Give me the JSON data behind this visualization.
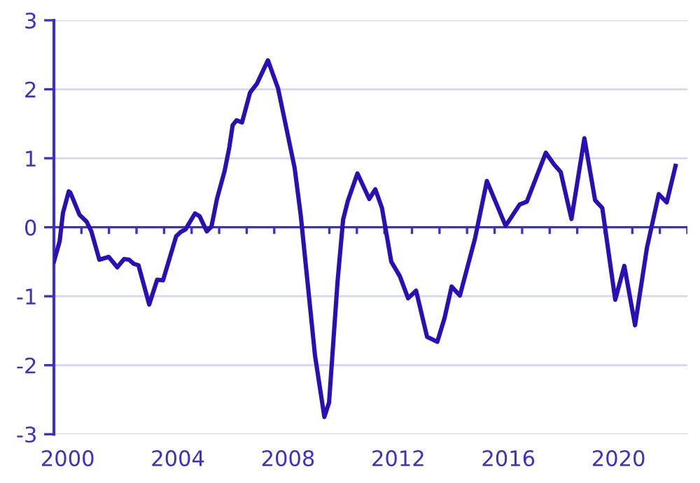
{
  "chart_data": {
    "type": "line",
    "x": [
      2000.0,
      2000.21,
      2000.33,
      2000.54,
      2000.6,
      2000.93,
      2001.19,
      2001.36,
      2001.65,
      2001.99,
      2002.3,
      2002.55,
      2002.73,
      2002.9,
      2003.07,
      2003.46,
      2003.75,
      2003.96,
      2004.44,
      2004.6,
      2004.78,
      2005.12,
      2005.29,
      2005.55,
      2005.72,
      2005.92,
      2006.2,
      2006.37,
      2006.49,
      2006.63,
      2006.83,
      2007.12,
      2007.37,
      2007.77,
      2008.14,
      2008.37,
      2008.74,
      2008.96,
      2009.22,
      2009.48,
      2009.82,
      2009.99,
      2010.3,
      2010.5,
      2010.67,
      2011.02,
      2011.45,
      2011.67,
      2011.91,
      2012.25,
      2012.56,
      2012.86,
      2013.15,
      2013.55,
      2013.92,
      2014.18,
      2014.44,
      2014.74,
      2015.29,
      2015.72,
      2016.4,
      2016.91,
      2017.17,
      2017.86,
      2018.16,
      2018.4,
      2018.79,
      2019.26,
      2019.65,
      2019.91,
      2020.38,
      2020.71,
      2021.1,
      2021.53,
      2021.96,
      2022.25,
      2022.57
    ],
    "series": [
      {
        "color": "#2a10b4",
        "values": [
          -0.5,
          -0.2,
          0.21,
          0.52,
          0.5,
          0.18,
          0.08,
          -0.06,
          -0.47,
          -0.43,
          -0.58,
          -0.46,
          -0.47,
          -0.53,
          -0.55,
          -1.12,
          -0.76,
          -0.77,
          -0.13,
          -0.07,
          -0.03,
          0.2,
          0.16,
          -0.06,
          0.01,
          0.41,
          0.82,
          1.16,
          1.48,
          1.55,
          1.52,
          1.95,
          2.08,
          2.42,
          2.01,
          1.57,
          0.86,
          0.18,
          -0.84,
          -1.86,
          -2.75,
          -2.54,
          -0.78,
          0.11,
          0.38,
          0.78,
          0.41,
          0.55,
          0.28,
          -0.5,
          -0.71,
          -1.03,
          -0.92,
          -1.59,
          -1.66,
          -1.32,
          -0.86,
          -0.99,
          -0.16,
          0.67,
          0.02,
          0.33,
          0.37,
          1.08,
          0.91,
          0.8,
          0.12,
          1.29,
          0.39,
          0.28,
          -1.05,
          -0.56,
          -1.42,
          -0.3,
          0.48,
          0.36,
          0.89
        ]
      }
    ],
    "xlim": [
      2000,
      2023
    ],
    "xticks": [
      {
        "value": 2000,
        "label": null
      },
      {
        "value": 2000.5,
        "label": "2000"
      },
      {
        "value": 2001,
        "label": null
      },
      {
        "value": 2002,
        "label": null
      },
      {
        "value": 2003,
        "label": null
      },
      {
        "value": 2004,
        "label": null
      },
      {
        "value": 2004.5,
        "label": "2004"
      },
      {
        "value": 2005,
        "label": null
      },
      {
        "value": 2006,
        "label": null
      },
      {
        "value": 2007,
        "label": null
      },
      {
        "value": 2008,
        "label": null
      },
      {
        "value": 2008.5,
        "label": "2008"
      },
      {
        "value": 2009,
        "label": null
      },
      {
        "value": 2010,
        "label": null
      },
      {
        "value": 2011,
        "label": null
      },
      {
        "value": 2012,
        "label": null
      },
      {
        "value": 2012.5,
        "label": "2012"
      },
      {
        "value": 2013,
        "label": null
      },
      {
        "value": 2014,
        "label": null
      },
      {
        "value": 2015,
        "label": null
      },
      {
        "value": 2016,
        "label": null
      },
      {
        "value": 2016.5,
        "label": "2016"
      },
      {
        "value": 2017,
        "label": null
      },
      {
        "value": 2018,
        "label": null
      },
      {
        "value": 2019,
        "label": null
      },
      {
        "value": 2020,
        "label": null
      },
      {
        "value": 2020.5,
        "label": "2020"
      },
      {
        "value": 2021,
        "label": null
      },
      {
        "value": 2022,
        "label": null
      },
      {
        "value": 2023,
        "label": null
      }
    ],
    "ylim": [
      -3,
      3
    ],
    "yticks": [
      -3,
      -2,
      -1,
      0,
      1,
      2,
      3
    ],
    "grid": "y",
    "ref_lines": [
      {
        "axis": "y",
        "value": 0,
        "label": null,
        "color": "#3c30c8"
      }
    ],
    "marker": "none",
    "line_style": "solid",
    "legend": false
  }
}
